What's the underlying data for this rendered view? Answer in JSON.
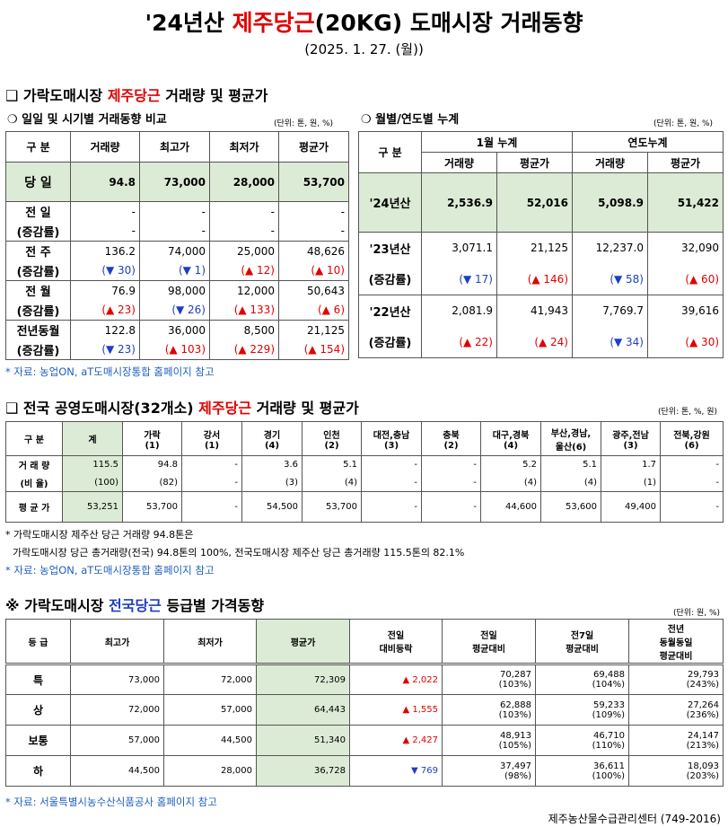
{
  "title": {
    "prefix": "'24년산 ",
    "highlight": "제주당근",
    "suffix": "(20KG) 도매시장 거래동향"
  },
  "date": "(2025. 1. 27. (월))",
  "section1": {
    "heading": {
      "prefix": "❑ 가락도매시장 ",
      "highlight": "제주당근",
      "suffix": " 거래량 및 평균가"
    },
    "left": {
      "subtitle": "❍ 일일 및 시기별 거래동향 비교",
      "unit": "(단위: 톤, 원, %)",
      "headers": [
        "구   분",
        "거래량",
        "최고가",
        "최저가",
        "평균가"
      ],
      "today": {
        "label": "당   일",
        "values": [
          "94.8",
          "73,000",
          "28,000",
          "53,700"
        ]
      },
      "rows": [
        {
          "label1": "전   일",
          "label2": "(증감률)",
          "values": [
            "-",
            "-",
            "-",
            "-"
          ],
          "changes": [
            "-",
            "-",
            "-",
            "-"
          ]
        },
        {
          "label1": "전   주",
          "label2": "(증감률)",
          "values": [
            "136.2",
            "74,000",
            "25,000",
            "48,626"
          ],
          "changes": [
            "(▼ 30)",
            "(▼ 1)",
            "(▲ 12)",
            "(▲ 10)"
          ]
        },
        {
          "label1": "전   월",
          "label2": "(증감률)",
          "values": [
            "76.9",
            "98,000",
            "12,000",
            "50,643"
          ],
          "changes": [
            "(▲ 23)",
            "(▼ 26)",
            "(▲ 133)",
            "(▲ 6)"
          ]
        },
        {
          "label1": "전년동월",
          "label2": "(증감률)",
          "values": [
            "122.8",
            "36,000",
            "8,500",
            "21,125"
          ],
          "changes": [
            "(▼ 23)",
            "(▲ 103)",
            "(▲ 229)",
            "(▲ 154)"
          ]
        }
      ]
    },
    "right": {
      "subtitle": "❍ 월별/연도별 누계",
      "unit": "(단위: 톤, 원, %)",
      "header_label": "구   분",
      "group1": "1월 누계",
      "group2": "연도누계",
      "subheaders": [
        "거래량",
        "평균가",
        "거래량",
        "평균가"
      ],
      "current": {
        "label": "'24년산",
        "values": [
          "2,536.9",
          "52,016",
          "5,098.9",
          "51,422"
        ]
      },
      "rows": [
        {
          "label1": "'23년산",
          "label2": "(증감률)",
          "values": [
            "3,071.1",
            "21,125",
            "12,237.0",
            "32,090"
          ],
          "changes": [
            "(▼ 17)",
            "(▲ 146)",
            "(▼ 58)",
            "(▲ 60)"
          ]
        },
        {
          "label1": "'22년산",
          "label2": "(증감률)",
          "values": [
            "2,081.9",
            "41,943",
            "7,769.7",
            "39,616"
          ],
          "changes": [
            "(▲ 22)",
            "(▲ 24)",
            "(▼ 34)",
            "(▲ 30)"
          ]
        }
      ]
    },
    "source": "* 자료: 농업ON, aT도매시장통합 홈페이지 참고"
  },
  "section2": {
    "heading": {
      "prefix": "❑ 전국 공영도매시장(32개소) ",
      "highlight": "제주당근",
      "suffix": " 거래량 및 평균가"
    },
    "unit": "(단위: 톤, %, 원)",
    "headers": [
      {
        "l1": "구   분",
        "l2": ""
      },
      {
        "l1": "계",
        "l2": ""
      },
      {
        "l1": "가락",
        "l2": "(1)"
      },
      {
        "l1": "강서",
        "l2": "(1)"
      },
      {
        "l1": "경기",
        "l2": "(4)"
      },
      {
        "l1": "인천",
        "l2": "(2)"
      },
      {
        "l1": "대전,충남",
        "l2": "(3)"
      },
      {
        "l1": "충북",
        "l2": "(2)"
      },
      {
        "l1": "대구,경북",
        "l2": "(4)"
      },
      {
        "l1": "부산,경남,",
        "l2": "울산(6)"
      },
      {
        "l1": "광주,전남",
        "l2": "(3)"
      },
      {
        "l1": "전북,강원",
        "l2": "(6)"
      }
    ],
    "volume_label": "거 래 량",
    "ratio_label": "(비   율)",
    "price_label": "평 균 가",
    "volume": [
      "115.5",
      "94.8",
      "-",
      "3.6",
      "5.1",
      "-",
      "-",
      "5.2",
      "5.1",
      "1.7",
      "-"
    ],
    "ratio": [
      "(100)",
      "(82)",
      "-",
      "(3)",
      "(4)",
      "-",
      "-",
      "(4)",
      "(4)",
      "(1)",
      "-"
    ],
    "price": [
      "53,251",
      "53,700",
      "-",
      "54,500",
      "53,700",
      "-",
      "-",
      "44,600",
      "53,600",
      "49,400",
      "-"
    ],
    "note1": "* 가락도매시장 제주산 당근 거래량 94.8톤은",
    "note2": "가락도매시장 당근 총거래량(전국) 94.8톤의 100%, 전국도매시장 제주산 당근 총거래량 115.5톤의 82.1%",
    "source": "* 자료: 농업ON, aT도매시장통합 홈페이지 참고"
  },
  "section3": {
    "heading": {
      "prefix": "※ 가락도매시장 ",
      "highlight": "전국당근",
      "suffix": " 등급별 가격동향"
    },
    "unit": "(단위: 원, %)",
    "headers": [
      {
        "l1": "등   급",
        "l2": "",
        "l3": ""
      },
      {
        "l1": "최고가",
        "l2": "",
        "l3": ""
      },
      {
        "l1": "최저가",
        "l2": "",
        "l3": ""
      },
      {
        "l1": "평균가",
        "l2": "",
        "l3": ""
      },
      {
        "l1": "전일",
        "l2": "대비등락",
        "l3": ""
      },
      {
        "l1": "전일",
        "l2": "평균대비",
        "l3": ""
      },
      {
        "l1": "전7일",
        "l2": "평균대비",
        "l3": ""
      },
      {
        "l1": "전년",
        "l2": "동월동일",
        "l3": "평균대비"
      }
    ],
    "rows": [
      {
        "grade": "특",
        "max": "73,000",
        "min": "72,000",
        "avg": "72,309",
        "diff": "▲ 2,022",
        "dir": "up",
        "prev": "70,287",
        "prev_pct": "(103%)",
        "wk": "69,488",
        "wk_pct": "(104%)",
        "yr": "29,793",
        "yr_pct": "(243%)"
      },
      {
        "grade": "상",
        "max": "72,000",
        "min": "57,000",
        "avg": "64,443",
        "diff": "▲ 1,555",
        "dir": "up",
        "prev": "62,888",
        "prev_pct": "(103%)",
        "wk": "59,233",
        "wk_pct": "(109%)",
        "yr": "27,264",
        "yr_pct": "(236%)"
      },
      {
        "grade": "보통",
        "max": "57,000",
        "min": "44,500",
        "avg": "51,340",
        "diff": "▲ 2,427",
        "dir": "up",
        "prev": "48,913",
        "prev_pct": "(105%)",
        "wk": "46,710",
        "wk_pct": "(110%)",
        "yr": "24,147",
        "yr_pct": "(213%)"
      },
      {
        "grade": "하",
        "max": "44,500",
        "min": "28,000",
        "avg": "36,728",
        "diff": "▼ 769",
        "dir": "down",
        "prev": "37,497",
        "prev_pct": "(98%)",
        "wk": "36,611",
        "wk_pct": "(100%)",
        "yr": "18,093",
        "yr_pct": "(203%)"
      }
    ],
    "source": "* 자료: 서울특별시농수산식품공사 홈페이지 참고"
  },
  "footer": "제주농산물수급관리센터 (749-2016)"
}
